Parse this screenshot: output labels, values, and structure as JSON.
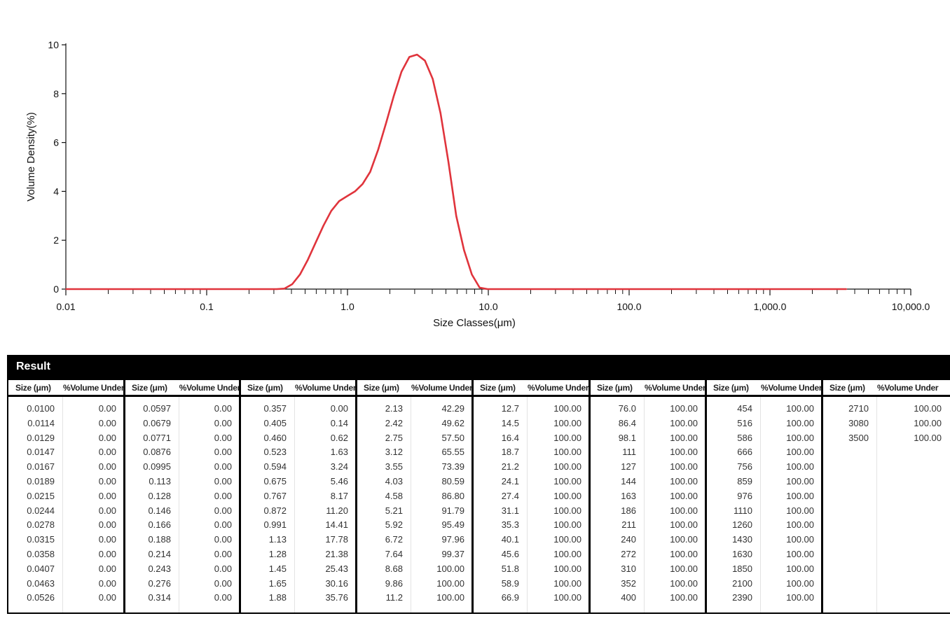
{
  "chart_data": {
    "type": "line",
    "title": "",
    "xlabel": "Size Classes(μm)",
    "ylabel": "Volume Density(%)",
    "xscale": "log",
    "xlim": [
      0.01,
      10000
    ],
    "ylim": [
      0,
      10
    ],
    "xticks": [
      0.01,
      0.1,
      1.0,
      10.0,
      100.0,
      1000.0,
      10000.0
    ],
    "xtick_labels": [
      "0.01",
      "0.1",
      "1.0",
      "10.0",
      "100.0",
      "1,000.0",
      "10,000.0"
    ],
    "yticks": [
      0,
      2,
      4,
      6,
      8,
      10
    ],
    "ytick_labels": [
      "0",
      "2",
      "4",
      "6",
      "8",
      "10"
    ],
    "grid": false,
    "color": "#e0343c",
    "series": [
      {
        "x": [
          0.01,
          0.0597,
          0.314,
          0.357,
          0.405,
          0.46,
          0.523,
          0.594,
          0.675,
          0.767,
          0.872,
          0.991,
          1.13,
          1.28,
          1.45,
          1.65,
          1.88,
          2.13,
          2.42,
          2.75,
          3.12,
          3.55,
          4.03,
          4.58,
          5.21,
          5.92,
          6.72,
          7.64,
          8.68,
          9.86,
          11.2,
          100,
          1000,
          3500
        ],
        "y": [
          0,
          0,
          0,
          0.02,
          0.2,
          0.6,
          1.2,
          1.9,
          2.6,
          3.2,
          3.6,
          3.8,
          4.0,
          4.3,
          4.8,
          5.7,
          6.8,
          7.9,
          8.9,
          9.5,
          9.6,
          9.35,
          8.6,
          7.2,
          5.2,
          3.0,
          1.6,
          0.6,
          0.06,
          0,
          0,
          0,
          0,
          0
        ]
      }
    ]
  },
  "result": {
    "title": "Result",
    "size_header": "Size (μm)",
    "volume_header": "%Volume Under",
    "columns": [
      {
        "rows": [
          [
            "0.0100",
            "0.00"
          ],
          [
            "0.0114",
            "0.00"
          ],
          [
            "0.0129",
            "0.00"
          ],
          [
            "0.0147",
            "0.00"
          ],
          [
            "0.0167",
            "0.00"
          ],
          [
            "0.0189",
            "0.00"
          ],
          [
            "0.0215",
            "0.00"
          ],
          [
            "0.0244",
            "0.00"
          ],
          [
            "0.0278",
            "0.00"
          ],
          [
            "0.0315",
            "0.00"
          ],
          [
            "0.0358",
            "0.00"
          ],
          [
            "0.0407",
            "0.00"
          ],
          [
            "0.0463",
            "0.00"
          ],
          [
            "0.0526",
            "0.00"
          ]
        ]
      },
      {
        "rows": [
          [
            "0.0597",
            "0.00"
          ],
          [
            "0.0679",
            "0.00"
          ],
          [
            "0.0771",
            "0.00"
          ],
          [
            "0.0876",
            "0.00"
          ],
          [
            "0.0995",
            "0.00"
          ],
          [
            "0.113",
            "0.00"
          ],
          [
            "0.128",
            "0.00"
          ],
          [
            "0.146",
            "0.00"
          ],
          [
            "0.166",
            "0.00"
          ],
          [
            "0.188",
            "0.00"
          ],
          [
            "0.214",
            "0.00"
          ],
          [
            "0.243",
            "0.00"
          ],
          [
            "0.276",
            "0.00"
          ],
          [
            "0.314",
            "0.00"
          ]
        ]
      },
      {
        "rows": [
          [
            "0.357",
            "0.00"
          ],
          [
            "0.405",
            "0.14"
          ],
          [
            "0.460",
            "0.62"
          ],
          [
            "0.523",
            "1.63"
          ],
          [
            "0.594",
            "3.24"
          ],
          [
            "0.675",
            "5.46"
          ],
          [
            "0.767",
            "8.17"
          ],
          [
            "0.872",
            "11.20"
          ],
          [
            "0.991",
            "14.41"
          ],
          [
            "1.13",
            "17.78"
          ],
          [
            "1.28",
            "21.38"
          ],
          [
            "1.45",
            "25.43"
          ],
          [
            "1.65",
            "30.16"
          ],
          [
            "1.88",
            "35.76"
          ]
        ]
      },
      {
        "rows": [
          [
            "2.13",
            "42.29"
          ],
          [
            "2.42",
            "49.62"
          ],
          [
            "2.75",
            "57.50"
          ],
          [
            "3.12",
            "65.55"
          ],
          [
            "3.55",
            "73.39"
          ],
          [
            "4.03",
            "80.59"
          ],
          [
            "4.58",
            "86.80"
          ],
          [
            "5.21",
            "91.79"
          ],
          [
            "5.92",
            "95.49"
          ],
          [
            "6.72",
            "97.96"
          ],
          [
            "7.64",
            "99.37"
          ],
          [
            "8.68",
            "100.00"
          ],
          [
            "9.86",
            "100.00"
          ],
          [
            "11.2",
            "100.00"
          ]
        ]
      },
      {
        "rows": [
          [
            "12.7",
            "100.00"
          ],
          [
            "14.5",
            "100.00"
          ],
          [
            "16.4",
            "100.00"
          ],
          [
            "18.7",
            "100.00"
          ],
          [
            "21.2",
            "100.00"
          ],
          [
            "24.1",
            "100.00"
          ],
          [
            "27.4",
            "100.00"
          ],
          [
            "31.1",
            "100.00"
          ],
          [
            "35.3",
            "100.00"
          ],
          [
            "40.1",
            "100.00"
          ],
          [
            "45.6",
            "100.00"
          ],
          [
            "51.8",
            "100.00"
          ],
          [
            "58.9",
            "100.00"
          ],
          [
            "66.9",
            "100.00"
          ]
        ]
      },
      {
        "rows": [
          [
            "76.0",
            "100.00"
          ],
          [
            "86.4",
            "100.00"
          ],
          [
            "98.1",
            "100.00"
          ],
          [
            "111",
            "100.00"
          ],
          [
            "127",
            "100.00"
          ],
          [
            "144",
            "100.00"
          ],
          [
            "163",
            "100.00"
          ],
          [
            "186",
            "100.00"
          ],
          [
            "211",
            "100.00"
          ],
          [
            "240",
            "100.00"
          ],
          [
            "272",
            "100.00"
          ],
          [
            "310",
            "100.00"
          ],
          [
            "352",
            "100.00"
          ],
          [
            "400",
            "100.00"
          ]
        ]
      },
      {
        "rows": [
          [
            "454",
            "100.00"
          ],
          [
            "516",
            "100.00"
          ],
          [
            "586",
            "100.00"
          ],
          [
            "666",
            "100.00"
          ],
          [
            "756",
            "100.00"
          ],
          [
            "859",
            "100.00"
          ],
          [
            "976",
            "100.00"
          ],
          [
            "1110",
            "100.00"
          ],
          [
            "1260",
            "100.00"
          ],
          [
            "1430",
            "100.00"
          ],
          [
            "1630",
            "100.00"
          ],
          [
            "1850",
            "100.00"
          ],
          [
            "2100",
            "100.00"
          ],
          [
            "2390",
            "100.00"
          ]
        ]
      },
      {
        "rows": [
          [
            "2710",
            "100.00"
          ],
          [
            "3080",
            "100.00"
          ],
          [
            "3500",
            "100.00"
          ]
        ]
      }
    ]
  }
}
